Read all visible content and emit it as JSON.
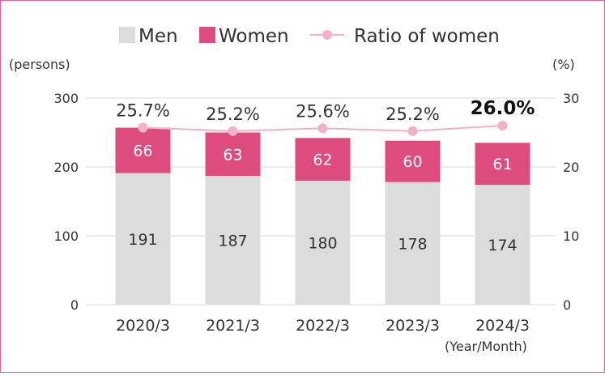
{
  "chart_data": {
    "type": "bar",
    "stacked": true,
    "categories": [
      "2020/3",
      "2021/3",
      "2022/3",
      "2023/3",
      "2024/3"
    ],
    "series": [
      {
        "name": "Men",
        "values": [
          191,
          187,
          180,
          178,
          174
        ],
        "color": "#dcdcdc"
      },
      {
        "name": "Women",
        "values": [
          66,
          63,
          62,
          60,
          61
        ],
        "color": "#de4c7f"
      }
    ],
    "line_series": {
      "name": "Ratio of women",
      "values": [
        25.7,
        25.2,
        25.6,
        25.2,
        26.0
      ],
      "labels": [
        "25.7%",
        "25.2%",
        "25.6%",
        "25.2%",
        "26.0%"
      ],
      "color": "#f0b2c4",
      "axis": "right"
    },
    "y_left": {
      "label": "(persons)",
      "ticks": [
        0,
        100,
        200,
        300
      ],
      "range": [
        0,
        300
      ]
    },
    "y_right": {
      "label": "(%)",
      "ticks": [
        0,
        10,
        20,
        30
      ],
      "range": [
        0,
        30
      ]
    },
    "x_unit": "(Year/Month)",
    "grid": true,
    "legend_position": "top"
  }
}
